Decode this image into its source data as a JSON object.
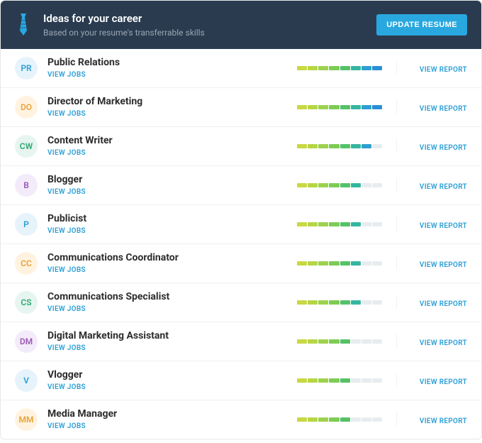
{
  "header": {
    "title": "Ideas for your career",
    "subtitle": "Based on your resume's transferrable skills",
    "button_label": "UPDATE RESUME",
    "icon_color": "#29a8e0",
    "bg_color": "#2a3b50"
  },
  "labels": {
    "view_jobs": "VIEW JOBS",
    "view_report": "VIEW REPORT"
  },
  "bar": {
    "empty_color": "#e7ecef",
    "gradient": [
      "#c9d843",
      "#b6d646",
      "#9dd24e",
      "#7ecb56",
      "#55c26a",
      "#36b6a0",
      "#2ea0cf",
      "#2a8fd6"
    ]
  },
  "items": [
    {
      "initials": "PR",
      "title": "Public Relations",
      "avatar_bg": "#e6f3fb",
      "avatar_fg": "#2a9fd6",
      "filled": 8
    },
    {
      "initials": "DO",
      "title": "Director of Marketing",
      "avatar_bg": "#fff3e0",
      "avatar_fg": "#e8a23a",
      "filled": 8
    },
    {
      "initials": "CW",
      "title": "Content Writer",
      "avatar_bg": "#e6f5ef",
      "avatar_fg": "#2fa874",
      "filled": 7
    },
    {
      "initials": "B",
      "title": "Blogger",
      "avatar_bg": "#f4ebfa",
      "avatar_fg": "#9b59b6",
      "filled": 6
    },
    {
      "initials": "P",
      "title": "Publicist",
      "avatar_bg": "#e6f3fb",
      "avatar_fg": "#2a9fd6",
      "filled": 6
    },
    {
      "initials": "CC",
      "title": "Communications Coordinator",
      "avatar_bg": "#fff3e0",
      "avatar_fg": "#e8a23a",
      "filled": 6
    },
    {
      "initials": "CS",
      "title": "Communications Specialist",
      "avatar_bg": "#e6f5ef",
      "avatar_fg": "#2fa874",
      "filled": 6
    },
    {
      "initials": "DM",
      "title": "Digital Marketing Assistant",
      "avatar_bg": "#f4ebfa",
      "avatar_fg": "#9b59b6",
      "filled": 5
    },
    {
      "initials": "V",
      "title": "Vlogger",
      "avatar_bg": "#e6f3fb",
      "avatar_fg": "#2a9fd6",
      "filled": 5
    },
    {
      "initials": "MM",
      "title": "Media Manager",
      "avatar_bg": "#fff3e0",
      "avatar_fg": "#e8a23a",
      "filled": 5
    }
  ]
}
